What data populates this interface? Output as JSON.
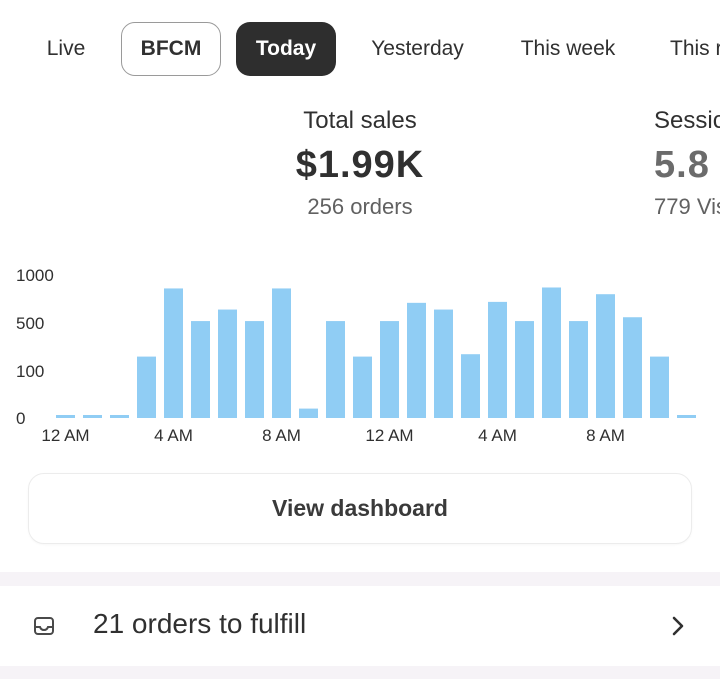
{
  "tabs": [
    {
      "label": "Live",
      "state": "plain"
    },
    {
      "label": "BFCM",
      "state": "outlined"
    },
    {
      "label": "Today",
      "state": "selected"
    },
    {
      "label": "Yesterday",
      "state": "plain"
    },
    {
      "label": "This week",
      "state": "plain"
    },
    {
      "label": "This r",
      "state": "plain"
    }
  ],
  "metrics": {
    "primary": {
      "label": "Total sales",
      "value": "$1.99K",
      "sub": "256 orders"
    },
    "secondary": {
      "label": "Sessic",
      "value": "5.8",
      "sub": "779 Vis"
    }
  },
  "chart_data": {
    "type": "bar",
    "y_tick_labels": [
      "1000",
      "500",
      "100",
      "0"
    ],
    "x_tick_labels": [
      "12 AM",
      "4 AM",
      "8 AM",
      "12 AM",
      "4 AM",
      "8 AM"
    ],
    "bar_color": "#90cdf4",
    "grid": false,
    "values": [
      3,
      3,
      3,
      220,
      860,
      520,
      640,
      520,
      860,
      20,
      520,
      220,
      520,
      710,
      640,
      240,
      720,
      520,
      870,
      520,
      800,
      560,
      220,
      5
    ],
    "values_note_units": "orders-scale estimate"
  },
  "actions": {
    "view_dashboard": "View dashboard"
  },
  "tasks": {
    "fulfill_label": "21 orders to fulfill"
  },
  "colors": {
    "selected_tab_bg": "#2e2e2e",
    "bar": "#90cdf4",
    "band": "#f6f3f7"
  }
}
